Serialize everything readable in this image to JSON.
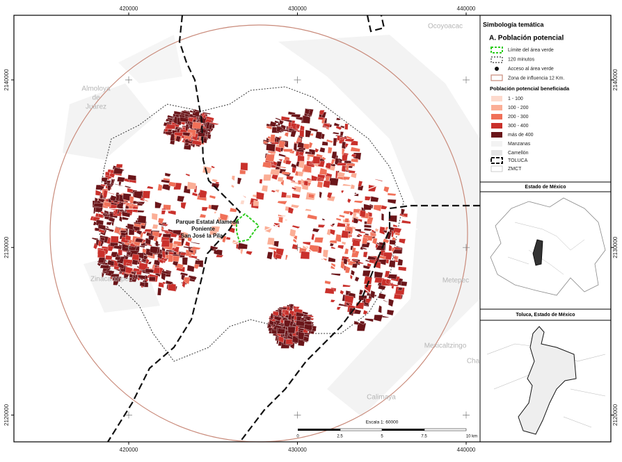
{
  "grid": {
    "x": [
      420000,
      430000,
      440000
    ],
    "y": [
      2140000,
      2130000,
      2120000
    ]
  },
  "places": [
    "Ocoyoacac",
    "Almoloya",
    "de",
    "Juárez",
    "Zinacantepec",
    "Metepec",
    "Mexicaltzingo",
    "Cha",
    "Calimaya"
  ],
  "park_label": [
    "Parque Estatal Alameda",
    "Poniente",
    "San José la Pila"
  ],
  "scale": {
    "title": "Escala 1: 60000",
    "labels": [
      "0",
      "2.5",
      "5",
      "7.5",
      "10 km"
    ]
  },
  "legend": {
    "title": "Simbología temática",
    "section": "A. Población potencial",
    "items": [
      "Límite del área verde",
      "120 minutos",
      "Acceso al área verde",
      "Zona de influencia 12 Km."
    ],
    "classes_title": "Población potencial beneficiada",
    "classes": [
      {
        "label": "1 - 100",
        "color": "#fdd9cc"
      },
      {
        "label": "100 - 200",
        "color": "#fbae96"
      },
      {
        "label": "200 - 300",
        "color": "#f07058"
      },
      {
        "label": "300 - 400",
        "color": "#c9302b"
      },
      {
        "label": "más de 400",
        "color": "#6a1519"
      }
    ],
    "base": [
      "Manzanas",
      "Camellón",
      "TOLUCA",
      "ZMCT"
    ]
  },
  "insets": [
    "Estado de México",
    "Toluca, Estado de México"
  ]
}
